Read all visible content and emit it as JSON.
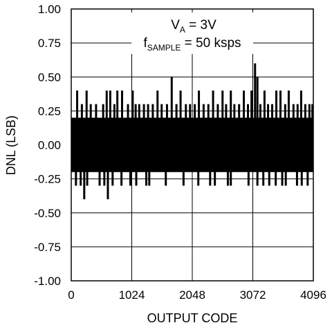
{
  "chart_data": {
    "type": "bar",
    "xlabel": "OUTPUT CODE",
    "ylabel": "DNL (LSB)",
    "xlim": [
      0,
      4096
    ],
    "ylim": [
      -1.0,
      1.0
    ],
    "x_ticks": [
      "0",
      "1024",
      "2048",
      "3072",
      "4096"
    ],
    "y_ticks": [
      "1.00",
      "0.75",
      "0.50",
      "0.25",
      "0.00",
      "-0.25",
      "-0.50",
      "-0.75",
      "-1.00"
    ],
    "grid": true,
    "annotation": {
      "line1_main": "V",
      "line1_sub": "A",
      "line1_rest": " = 3V",
      "line2_main": "f",
      "line2_sub": "SAMPLE",
      "line2_rest": " = 50 ksps"
    },
    "band": {
      "min": -0.2,
      "max": 0.2
    },
    "spikes_pos": [
      {
        "x": 100,
        "y": 0.4
      },
      {
        "x": 180,
        "y": 0.3
      },
      {
        "x": 260,
        "y": 0.4
      },
      {
        "x": 330,
        "y": 0.3
      },
      {
        "x": 420,
        "y": 0.3
      },
      {
        "x": 540,
        "y": 0.3
      },
      {
        "x": 600,
        "y": 0.4
      },
      {
        "x": 660,
        "y": 0.4
      },
      {
        "x": 730,
        "y": 0.3
      },
      {
        "x": 780,
        "y": 0.4
      },
      {
        "x": 860,
        "y": 0.4
      },
      {
        "x": 960,
        "y": 0.3
      },
      {
        "x": 1040,
        "y": 0.4
      },
      {
        "x": 1090,
        "y": 0.3
      },
      {
        "x": 1150,
        "y": 0.3
      },
      {
        "x": 1230,
        "y": 0.3
      },
      {
        "x": 1300,
        "y": 0.3
      },
      {
        "x": 1380,
        "y": 0.3
      },
      {
        "x": 1460,
        "y": 0.4
      },
      {
        "x": 1530,
        "y": 0.3
      },
      {
        "x": 1620,
        "y": 0.3
      },
      {
        "x": 1700,
        "y": 0.5
      },
      {
        "x": 1780,
        "y": 0.3
      },
      {
        "x": 1850,
        "y": 0.4
      },
      {
        "x": 1940,
        "y": 0.3
      },
      {
        "x": 2010,
        "y": 0.3
      },
      {
        "x": 2090,
        "y": 0.3
      },
      {
        "x": 2160,
        "y": 0.4
      },
      {
        "x": 2240,
        "y": 0.3
      },
      {
        "x": 2320,
        "y": 0.3
      },
      {
        "x": 2400,
        "y": 0.4
      },
      {
        "x": 2480,
        "y": 0.3
      },
      {
        "x": 2560,
        "y": 0.4
      },
      {
        "x": 2620,
        "y": 0.3
      },
      {
        "x": 2700,
        "y": 0.4
      },
      {
        "x": 2760,
        "y": 0.3
      },
      {
        "x": 2840,
        "y": 0.3
      },
      {
        "x": 2920,
        "y": 0.4
      },
      {
        "x": 2990,
        "y": 0.3
      },
      {
        "x": 3050,
        "y": 0.4
      },
      {
        "x": 3110,
        "y": 0.6
      },
      {
        "x": 3150,
        "y": 0.5
      },
      {
        "x": 3200,
        "y": 0.3
      },
      {
        "x": 3270,
        "y": 0.4
      },
      {
        "x": 3330,
        "y": 0.3
      },
      {
        "x": 3400,
        "y": 0.3
      },
      {
        "x": 3470,
        "y": 0.4
      },
      {
        "x": 3540,
        "y": 0.4
      },
      {
        "x": 3620,
        "y": 0.3
      },
      {
        "x": 3680,
        "y": 0.4
      },
      {
        "x": 3760,
        "y": 0.3
      },
      {
        "x": 3830,
        "y": 0.3
      },
      {
        "x": 3890,
        "y": 0.4
      },
      {
        "x": 3960,
        "y": 0.3
      },
      {
        "x": 4030,
        "y": 0.3
      },
      {
        "x": 4080,
        "y": 0.3
      }
    ],
    "spikes_neg": [
      {
        "x": 80,
        "y": -0.3
      },
      {
        "x": 160,
        "y": -0.3
      },
      {
        "x": 220,
        "y": -0.4
      },
      {
        "x": 270,
        "y": -0.3
      },
      {
        "x": 480,
        "y": -0.3
      },
      {
        "x": 560,
        "y": -0.3
      },
      {
        "x": 620,
        "y": -0.4
      },
      {
        "x": 700,
        "y": -0.3
      },
      {
        "x": 850,
        "y": -0.3
      },
      {
        "x": 1000,
        "y": -0.3
      },
      {
        "x": 1100,
        "y": -0.3
      },
      {
        "x": 1270,
        "y": -0.3
      },
      {
        "x": 1320,
        "y": -0.3
      },
      {
        "x": 1600,
        "y": -0.3
      },
      {
        "x": 1900,
        "y": -0.3
      },
      {
        "x": 2150,
        "y": -0.3
      },
      {
        "x": 2350,
        "y": -0.3
      },
      {
        "x": 2430,
        "y": -0.3
      },
      {
        "x": 2650,
        "y": -0.3
      },
      {
        "x": 2700,
        "y": -0.3
      },
      {
        "x": 3000,
        "y": -0.3
      },
      {
        "x": 3150,
        "y": -0.3
      },
      {
        "x": 3250,
        "y": -0.3
      },
      {
        "x": 3350,
        "y": -0.3
      },
      {
        "x": 3460,
        "y": -0.3
      },
      {
        "x": 3570,
        "y": -0.3
      },
      {
        "x": 3630,
        "y": -0.3
      },
      {
        "x": 3820,
        "y": -0.3
      },
      {
        "x": 3900,
        "y": -0.3
      },
      {
        "x": 4000,
        "y": -0.3
      }
    ],
    "colors": {
      "ink": "#000000",
      "background": "#ffffff"
    }
  }
}
